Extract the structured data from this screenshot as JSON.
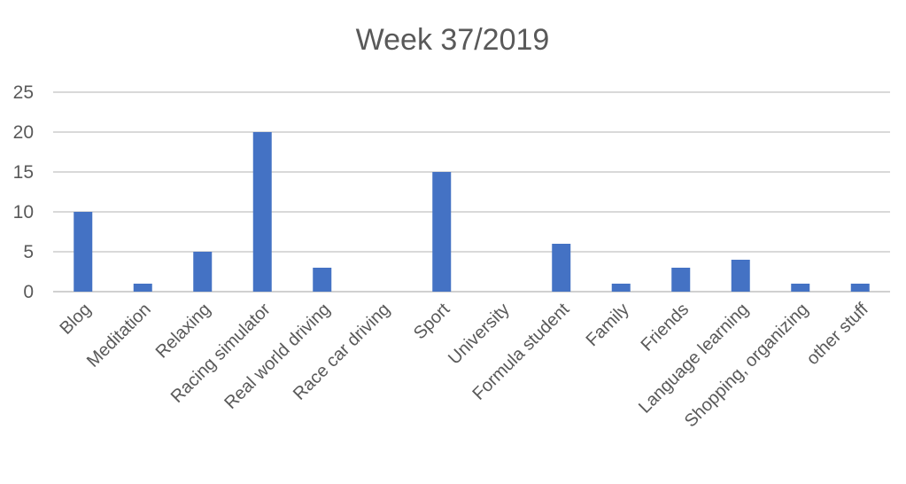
{
  "chart_data": {
    "type": "bar",
    "title": "Week 37/2019",
    "xlabel": "",
    "ylabel": "",
    "categories": [
      "Blog",
      "Meditation",
      "Relaxing",
      "Racing simulator",
      "Real world driving",
      "Race car driving",
      "Sport",
      "University",
      "Formula student",
      "Family",
      "Friends",
      "Language learning",
      "Shopping, organizing",
      "other stuff"
    ],
    "values": [
      10,
      1,
      5,
      20,
      3,
      0,
      15,
      0,
      6,
      1,
      3,
      4,
      1,
      1
    ],
    "ylim": [
      0,
      25
    ],
    "yticks": [
      0,
      5,
      10,
      15,
      20,
      25
    ],
    "grid": true,
    "legend": "none",
    "bar_color": "#4472C4",
    "grid_color": "#D9D9D9",
    "text_color": "#595959"
  }
}
